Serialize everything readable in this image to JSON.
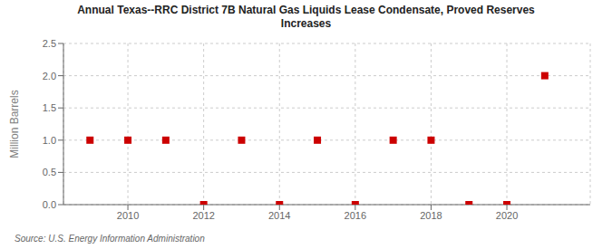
{
  "chart_data": {
    "type": "scatter",
    "title": "Annual Texas--RRC District 7B Natural Gas Liquids Lease Condensate, Proved Reserves\nIncreases",
    "y_label": "Million Barrels",
    "source": "Source: U.S. Energy Information Administration",
    "x": [
      2009,
      2010,
      2011,
      2012,
      2013,
      2014,
      2015,
      2016,
      2017,
      2018,
      2019,
      2020,
      2021
    ],
    "values": [
      1.0,
      1.0,
      1.0,
      0.0,
      1.0,
      0.0,
      1.0,
      0.0,
      1.0,
      1.0,
      0.0,
      0.0,
      2.0
    ],
    "color": "#cc0000",
    "marker": "square",
    "xlim": [
      2008.3,
      2022.2
    ],
    "xticks": [
      2010,
      2012,
      2014,
      2016,
      2018,
      2020
    ],
    "ylim": [
      0,
      2.5
    ],
    "yticks": [
      {
        "value": 0,
        "label": "0.0"
      },
      0.5,
      {
        "value": 1,
        "label": "1.0"
      },
      1.5,
      {
        "value": 2,
        "label": "2.0"
      },
      2.5
    ],
    "grid": true
  }
}
